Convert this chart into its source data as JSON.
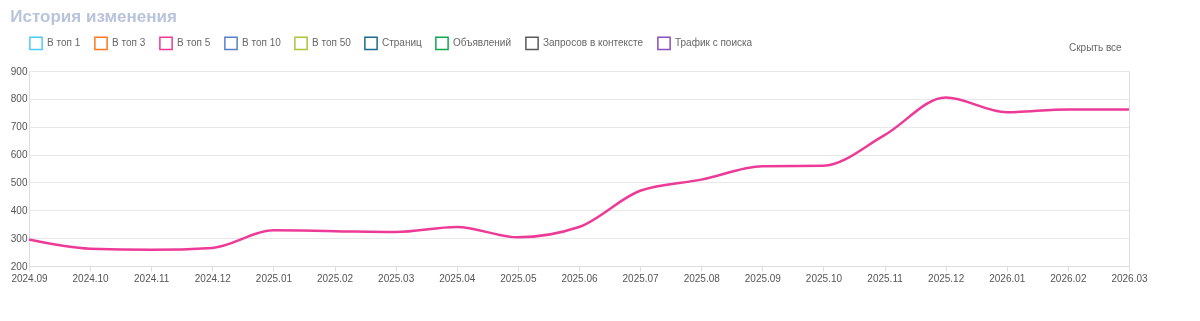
{
  "chart_data": {
    "type": "line",
    "title": "История изменения",
    "categories": [
      "2024.09",
      "2024.10",
      "2024.11",
      "2024.12",
      "2025.01",
      "2025.02",
      "2025.03",
      "2025.04",
      "2025.05",
      "2025.06",
      "2025.07",
      "2025.08",
      "2025.09",
      "2025.10",
      "2025.11",
      "2025.12",
      "2026.01",
      "2026.02",
      "2026.03"
    ],
    "series": [
      {
        "name": "В топ 1",
        "color": "#4fc9f4",
        "values": [
          null,
          null,
          null,
          null,
          null,
          null,
          null,
          null,
          null,
          null,
          null,
          null,
          null,
          null,
          null,
          null,
          null,
          null,
          null
        ]
      },
      {
        "name": "В топ 3",
        "color": "#f97a1f",
        "values": [
          null,
          null,
          null,
          null,
          null,
          null,
          null,
          null,
          null,
          null,
          null,
          null,
          null,
          null,
          null,
          null,
          null,
          null,
          null
        ]
      },
      {
        "name": "В топ 5",
        "color": "#ee3a97",
        "values": [
          295,
          262,
          258,
          265,
          328,
          325,
          322,
          340,
          303,
          340,
          470,
          510,
          558,
          560,
          670,
          805,
          752,
          762,
          762
        ]
      },
      {
        "name": "В топ 10",
        "color": "#5b7fc7",
        "values": [
          null,
          null,
          null,
          null,
          null,
          null,
          null,
          null,
          null,
          null,
          null,
          null,
          null,
          null,
          null,
          null,
          null,
          null,
          null
        ]
      },
      {
        "name": "В топ 50",
        "color": "#aec23a",
        "values": [
          null,
          null,
          null,
          null,
          null,
          null,
          null,
          null,
          null,
          null,
          null,
          null,
          null,
          null,
          null,
          null,
          null,
          null,
          null
        ]
      },
      {
        "name": "Страниц",
        "color": "#1b6b8e",
        "values": [
          null,
          null,
          null,
          null,
          null,
          null,
          null,
          null,
          null,
          null,
          null,
          null,
          null,
          null,
          null,
          null,
          null,
          null,
          null
        ]
      },
      {
        "name": "Объявлений",
        "color": "#10a74f",
        "values": [
          null,
          null,
          null,
          null,
          null,
          null,
          null,
          null,
          null,
          null,
          null,
          null,
          null,
          null,
          null,
          null,
          null,
          null,
          null
        ]
      },
      {
        "name": "Запросов в контексте",
        "color": "#5a5a5a",
        "values": [
          null,
          null,
          null,
          null,
          null,
          null,
          null,
          null,
          null,
          null,
          null,
          null,
          null,
          null,
          null,
          null,
          null,
          null,
          null
        ]
      },
      {
        "name": "Трафик с поиска",
        "color": "#8a4ec2",
        "values": [
          null,
          null,
          null,
          null,
          null,
          null,
          null,
          null,
          null,
          null,
          null,
          null,
          null,
          null,
          null,
          null,
          null,
          null,
          null
        ]
      }
    ],
    "annotations": [
      "Скрыть все"
    ],
    "ylim": [
      200,
      900
    ],
    "yticks": [
      200,
      300,
      400,
      500,
      600,
      700,
      800,
      900
    ],
    "grid": "y",
    "legend": "top",
    "marker": "none",
    "line_style": "solid"
  }
}
